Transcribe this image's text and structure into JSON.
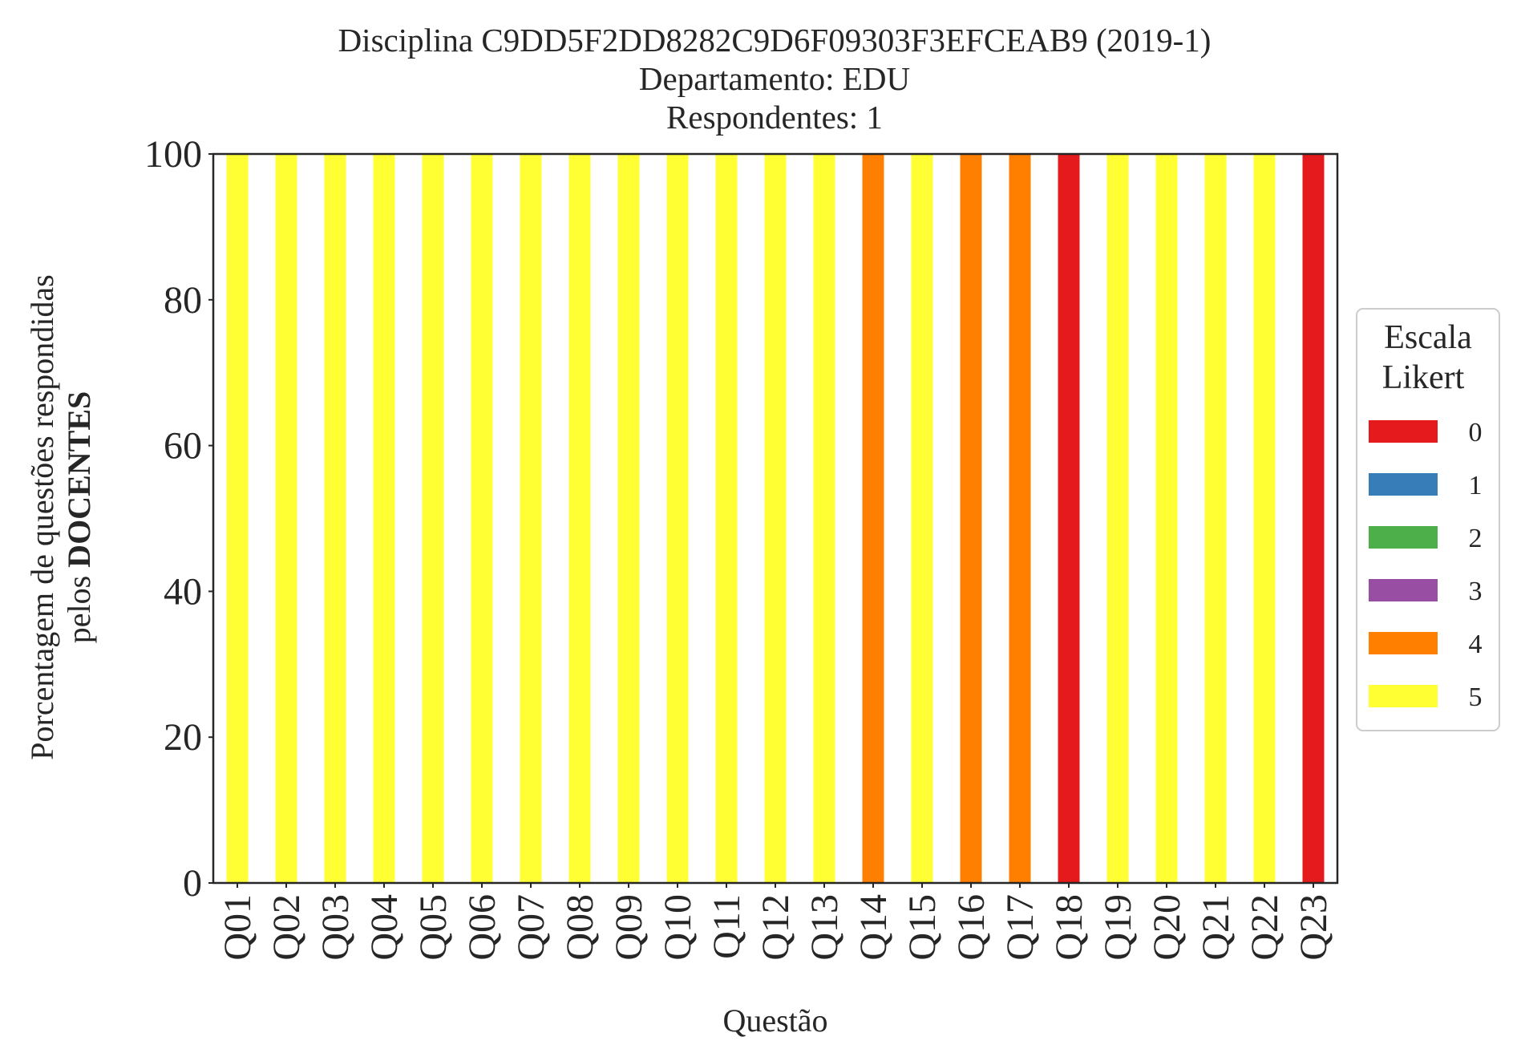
{
  "chart_data": {
    "type": "bar",
    "stacked": true,
    "title": [
      "Disciplina C9DD5F2DD8282C9D6F09303F3EFCEAB9 (2019-1)",
      "Departamento: EDU",
      "Respondentes: 1"
    ],
    "xlabel": "Questão",
    "ylabel": {
      "line1": "Porcentagem de questões respondidas",
      "line2_prefix": "pelos ",
      "line2_bold": "DOCENTES"
    },
    "ylim": [
      0,
      100
    ],
    "yticks": [
      0,
      20,
      40,
      60,
      80,
      100
    ],
    "categories": [
      "Q01",
      "Q02",
      "Q03",
      "Q04",
      "Q05",
      "Q06",
      "Q07",
      "Q08",
      "Q09",
      "Q10",
      "Q11",
      "Q12",
      "Q13",
      "Q14",
      "Q15",
      "Q16",
      "Q17",
      "Q18",
      "Q19",
      "Q20",
      "Q21",
      "Q22",
      "Q23"
    ],
    "series": [
      {
        "name": "0",
        "color": "#e41a1c",
        "values": [
          0,
          0,
          0,
          0,
          0,
          0,
          0,
          0,
          0,
          0,
          0,
          0,
          0,
          0,
          0,
          0,
          0,
          100,
          0,
          0,
          0,
          0,
          100
        ]
      },
      {
        "name": "1",
        "color": "#377eb8",
        "values": [
          0,
          0,
          0,
          0,
          0,
          0,
          0,
          0,
          0,
          0,
          0,
          0,
          0,
          0,
          0,
          0,
          0,
          0,
          0,
          0,
          0,
          0,
          0
        ]
      },
      {
        "name": "2",
        "color": "#4daf4a",
        "values": [
          0,
          0,
          0,
          0,
          0,
          0,
          0,
          0,
          0,
          0,
          0,
          0,
          0,
          0,
          0,
          0,
          0,
          0,
          0,
          0,
          0,
          0,
          0
        ]
      },
      {
        "name": "3",
        "color": "#984ea3",
        "values": [
          0,
          0,
          0,
          0,
          0,
          0,
          0,
          0,
          0,
          0,
          0,
          0,
          0,
          0,
          0,
          0,
          0,
          0,
          0,
          0,
          0,
          0,
          0
        ]
      },
      {
        "name": "4",
        "color": "#ff7f00",
        "values": [
          0,
          0,
          0,
          0,
          0,
          0,
          0,
          0,
          0,
          0,
          0,
          0,
          0,
          100,
          0,
          100,
          100,
          0,
          0,
          0,
          0,
          0,
          0
        ]
      },
      {
        "name": "5",
        "color": "#ffff33",
        "values": [
          100,
          100,
          100,
          100,
          100,
          100,
          100,
          100,
          100,
          100,
          100,
          100,
          100,
          0,
          100,
          0,
          0,
          0,
          100,
          100,
          100,
          100,
          0
        ]
      }
    ],
    "legend": {
      "title": [
        "Escala",
        "Likert"
      ],
      "placement": "right-outside"
    },
    "grid": false
  }
}
